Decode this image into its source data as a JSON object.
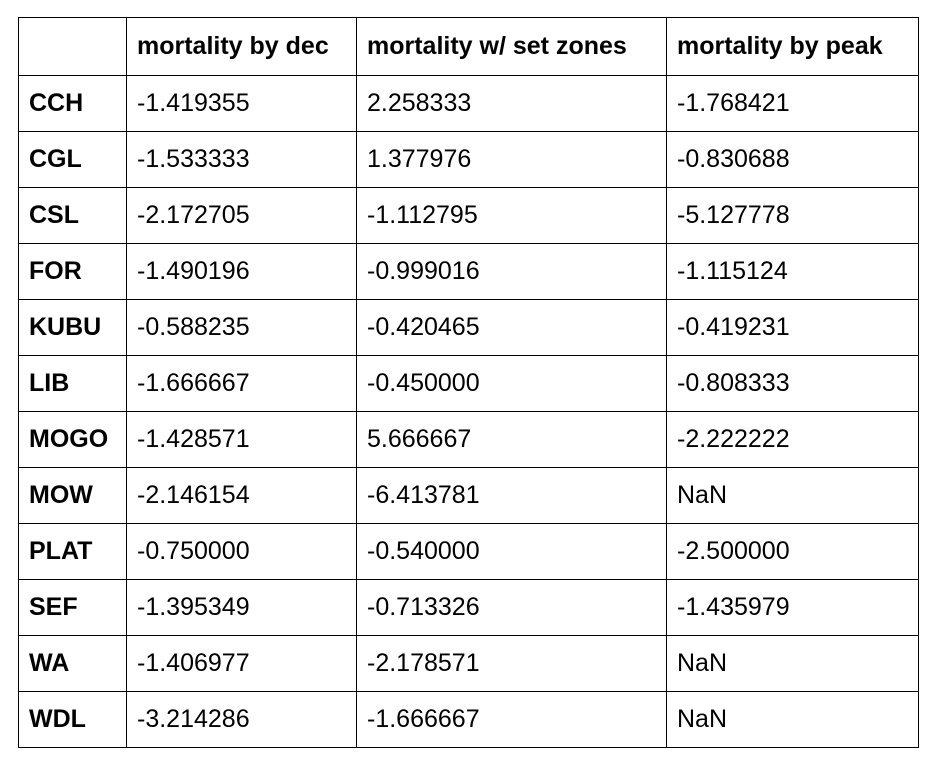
{
  "table": {
    "corner": "",
    "columns": [
      "mortality by dec",
      "mortality w/ set zones",
      "mortality by peak"
    ],
    "rows": [
      {
        "label": "CCH",
        "values": [
          "-1.419355",
          "2.258333",
          "-1.768421"
        ]
      },
      {
        "label": "CGL",
        "values": [
          "-1.533333",
          "1.377976",
          "-0.830688"
        ]
      },
      {
        "label": "CSL",
        "values": [
          "-2.172705",
          "-1.112795",
          "-5.127778"
        ]
      },
      {
        "label": "FOR",
        "values": [
          "-1.490196",
          "-0.999016",
          "-1.115124"
        ]
      },
      {
        "label": "KUBU",
        "values": [
          "-0.588235",
          "-0.420465",
          "-0.419231"
        ]
      },
      {
        "label": "LIB",
        "values": [
          "-1.666667",
          "-0.450000",
          "-0.808333"
        ]
      },
      {
        "label": "MOGO",
        "values": [
          "-1.428571",
          "5.666667",
          "-2.222222"
        ]
      },
      {
        "label": "MOW",
        "values": [
          "-2.146154",
          "-6.413781",
          "NaN"
        ]
      },
      {
        "label": "PLAT",
        "values": [
          "-0.750000",
          "-0.540000",
          "-2.500000"
        ]
      },
      {
        "label": "SEF",
        "values": [
          "-1.395349",
          "-0.713326",
          "-1.435979"
        ]
      },
      {
        "label": "WA",
        "values": [
          "-1.406977",
          "-2.178571",
          "NaN"
        ]
      },
      {
        "label": "WDL",
        "values": [
          "-3.214286",
          "-1.666667",
          "NaN"
        ]
      }
    ]
  }
}
